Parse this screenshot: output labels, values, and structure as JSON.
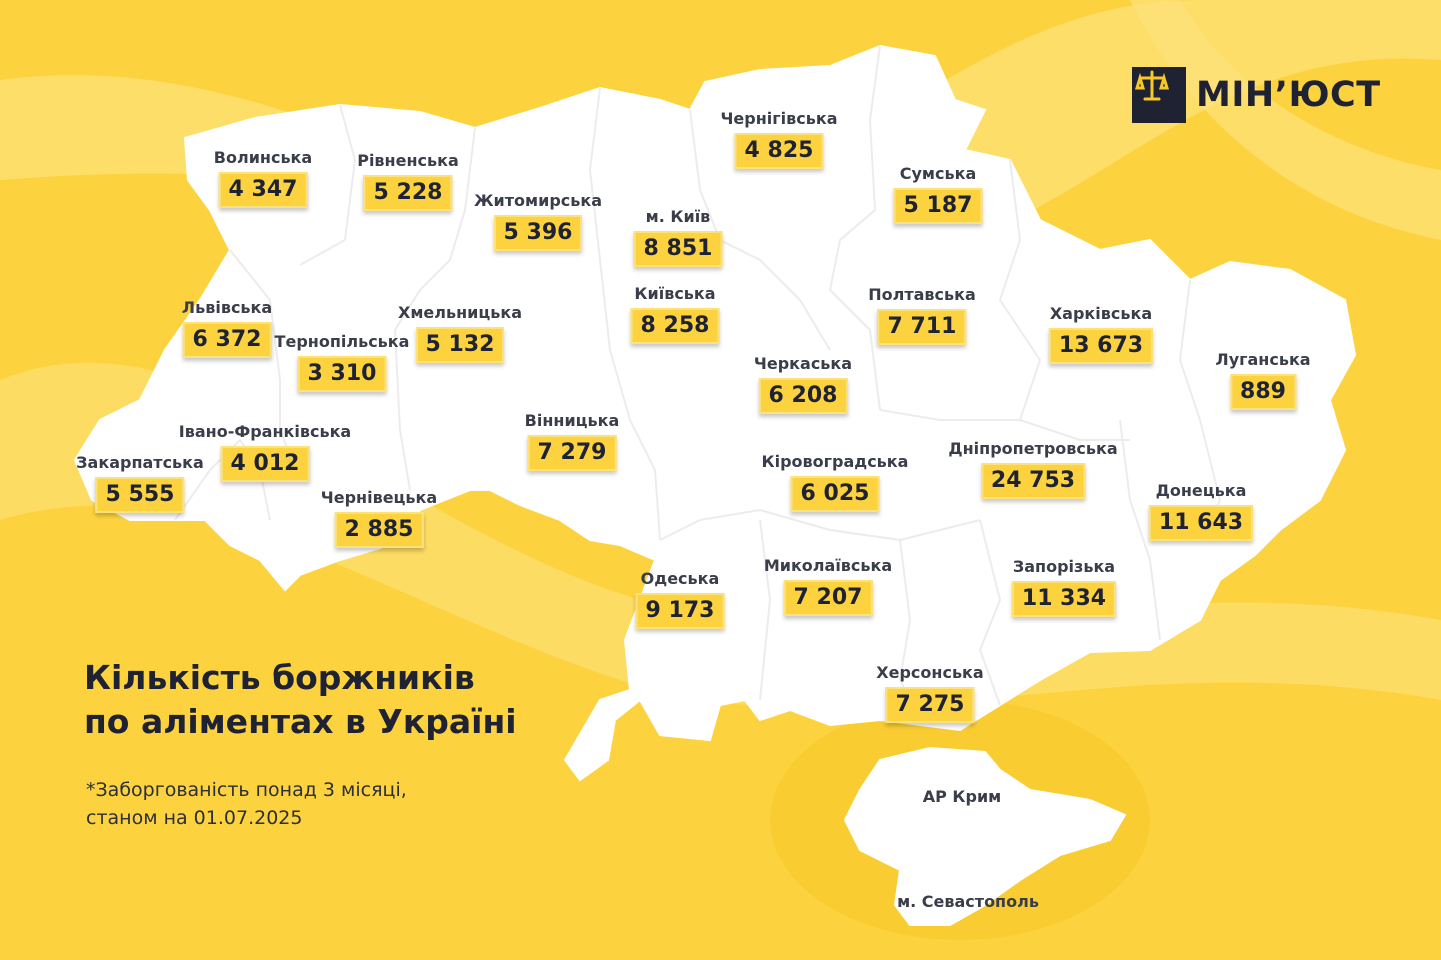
{
  "logo": {
    "text": "МІН’ЮСТ",
    "icon": "scales-icon"
  },
  "title": {
    "line1": "Кількість боржників",
    "line2": "по аліментах в Україні"
  },
  "note": {
    "line1": "*Заборгованість понад 3 місяці,",
    "line2": "станом на 01.07.2025"
  },
  "colors": {
    "background": "#fcd33f",
    "band": "#fde27c",
    "map": "#ffffff",
    "text": "#1f2233",
    "label": "#3a3d4a"
  },
  "regions": {
    "volynska": {
      "name": "Волинська",
      "value": "4 347"
    },
    "rivnenska": {
      "name": "Рівненська",
      "value": "5 228"
    },
    "zhytomyrska": {
      "name": "Житомирська",
      "value": "5 396"
    },
    "kyiv_city": {
      "name": "м. Київ",
      "value": "8 851"
    },
    "chernihivska": {
      "name": "Чернігівська",
      "value": "4 825"
    },
    "sumska": {
      "name": "Сумська",
      "value": "5 187"
    },
    "lvivska": {
      "name": "Львівська",
      "value": "6 372"
    },
    "ternopilska": {
      "name": "Тернопільська",
      "value": "3 310"
    },
    "khmelnytska": {
      "name": "Хмельницька",
      "value": "5 132"
    },
    "kyivska": {
      "name": "Київська",
      "value": "8 258"
    },
    "poltavska": {
      "name": "Полтавська",
      "value": "7 711"
    },
    "kharkivska": {
      "name": "Харківська",
      "value": "13 673"
    },
    "luhanska": {
      "name": "Луганська",
      "value": "889"
    },
    "cherkaska": {
      "name": "Черкаська",
      "value": "6 208"
    },
    "ivano_frankivska": {
      "name": "Івано-Франківська",
      "value": "4 012"
    },
    "zakarpatska": {
      "name": "Закарпатська",
      "value": "5 555"
    },
    "vinnytska": {
      "name": "Вінницька",
      "value": "7 279"
    },
    "chernivetska": {
      "name": "Чернівецька",
      "value": "2 885"
    },
    "kirovohradska": {
      "name": "Кіровоградська",
      "value": "6 025"
    },
    "dnipropetrovska": {
      "name": "Дніпропетровська",
      "value": "24 753"
    },
    "donetska": {
      "name": "Донецька",
      "value": "11 643"
    },
    "odeska": {
      "name": "Одеська",
      "value": "9 173"
    },
    "mykolaivska": {
      "name": "Миколаївська",
      "value": "7 207"
    },
    "zaporizka": {
      "name": "Запорізька",
      "value": "11 334"
    },
    "khersonska": {
      "name": "Херсонська",
      "value": "7 275"
    },
    "crimea": {
      "name": "АР Крим"
    },
    "sevastopol": {
      "name": "м. Севастополь"
    }
  }
}
